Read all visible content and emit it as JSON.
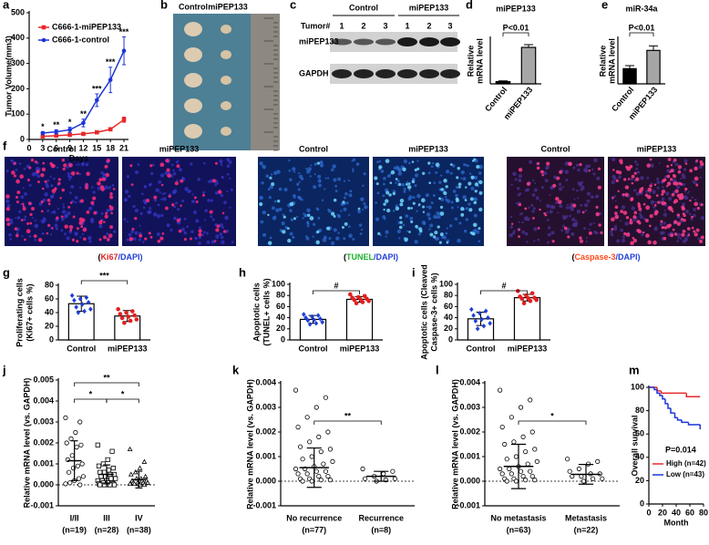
{
  "chart_data": [
    {
      "letter": "a",
      "type": "line",
      "ylabel": "Tumor Volume(mm3)",
      "xlabel": "Days",
      "x": [
        3,
        6,
        9,
        12,
        15,
        18,
        21
      ],
      "xlim": [
        0,
        22
      ],
      "xticks": [
        0,
        3,
        6,
        9,
        12,
        15,
        18,
        21
      ],
      "ylim": [
        0,
        500
      ],
      "yticks": [
        0,
        100,
        200,
        300,
        400,
        500
      ],
      "series": [
        {
          "name": "C666-1-miPEP133",
          "color": "#e8282b",
          "marker": "square",
          "values": [
            12,
            15,
            18,
            22,
            28,
            40,
            78
          ],
          "errors": [
            4,
            4,
            5,
            5,
            6,
            6,
            10
          ]
        },
        {
          "name": "C666-1-control",
          "color": "#1d35d6",
          "marker": "circle",
          "values": [
            25,
            30,
            38,
            65,
            155,
            235,
            350
          ],
          "errors": [
            6,
            8,
            10,
            15,
            25,
            50,
            55
          ]
        }
      ],
      "annotations": [
        "*",
        "**",
        "*",
        "**",
        "***",
        "***",
        "***"
      ]
    },
    {
      "letter": "d",
      "type": "bar",
      "title": "miPEP133",
      "ylabel": [
        "Relative",
        "mRNA level"
      ],
      "categories": [
        "Control",
        "miPEP133"
      ],
      "values": [
        1,
        16
      ],
      "errors": [
        0.3,
        1.2
      ],
      "colors": [
        "#000000",
        "#a6a6a6"
      ],
      "ylim": [
        0,
        20
      ],
      "significance": "P<0.01"
    },
    {
      "letter": "e",
      "type": "bar",
      "title": "miR-34a",
      "ylabel": [
        "Relative",
        "mRNA level"
      ],
      "categories": [
        "Control",
        "miPEP133"
      ],
      "values": [
        1,
        2.2
      ],
      "errors": [
        0.2,
        0.3
      ],
      "colors": [
        "#000000",
        "#a6a6a6"
      ],
      "ylim": [
        0,
        3
      ],
      "significance": "P<0.01"
    },
    {
      "letter": "g",
      "type": "bar",
      "ylabel": [
        "Proliferating cells",
        "(Ki67+ cells %)"
      ],
      "categories": [
        "Control",
        "miPEP133"
      ],
      "values": [
        53,
        35
      ],
      "errors": [
        11,
        8
      ],
      "colors": [
        "#ffffff",
        "#ffffff"
      ],
      "point_colors": [
        "#1f3fd8",
        "#e02020"
      ],
      "points": [
        [
          65,
          62,
          60,
          58,
          55,
          52,
          48,
          45,
          42,
          40
        ],
        [
          45,
          42,
          40,
          38,
          36,
          34,
          32,
          30,
          28,
          25
        ]
      ],
      "ylim": [
        0,
        80
      ],
      "yticks": [
        0,
        20,
        40,
        60,
        80
      ],
      "significance": "***"
    },
    {
      "letter": "h",
      "type": "bar",
      "ylabel": [
        "Apoptotic cells",
        "(TUNEL+ cells %)"
      ],
      "categories": [
        "Control",
        "miPEP133"
      ],
      "values": [
        37,
        73
      ],
      "errors": [
        7,
        5
      ],
      "colors": [
        "#ffffff",
        "#ffffff"
      ],
      "point_colors": [
        "#1f3fd8",
        "#e02020"
      ],
      "points": [
        [
          46,
          44,
          42,
          40,
          38,
          36,
          35,
          32,
          30,
          28
        ],
        [
          82,
          79,
          77,
          76,
          74,
          73,
          72,
          70,
          68,
          66
        ]
      ],
      "ylim": [
        0,
        100
      ],
      "yticks": [
        0,
        20,
        40,
        60,
        80,
        100
      ],
      "significance": "#"
    },
    {
      "letter": "i",
      "type": "bar",
      "ylabel": [
        "Apoptotic cells (Cleaved",
        "Caspase-3+ cells %)"
      ],
      "categories": [
        "Control",
        "miPEP133"
      ],
      "values": [
        38,
        76
      ],
      "errors": [
        12,
        6
      ],
      "colors": [
        "#ffffff",
        "#ffffff"
      ],
      "point_colors": [
        "#1f3fd8",
        "#e02020"
      ],
      "points": [
        [
          55,
          52,
          48,
          44,
          40,
          37,
          34,
          30,
          25,
          20
        ],
        [
          88,
          84,
          80,
          78,
          76,
          75,
          74,
          72,
          70,
          66
        ]
      ],
      "ylim": [
        0,
        100
      ],
      "yticks": [
        0,
        20,
        40,
        60,
        80,
        100
      ],
      "significance": "#"
    },
    {
      "letter": "j",
      "type": "dot",
      "ylabel": "Relative mRNA level (vs. GAPDH)",
      "categories": [
        "I/II",
        "III",
        "IV"
      ],
      "sublabels": [
        "(n=19)",
        "(n=28)",
        "(n=38)"
      ],
      "markers": [
        "circle",
        "square",
        "triangle"
      ],
      "points": [
        [
          0.0032,
          0.003,
          0.0025,
          0.0022,
          0.002,
          0.0019,
          0.0018,
          0.0014,
          0.0012,
          0.001,
          0.0009,
          0.0008,
          0.0006,
          0.0004,
          0.0003,
          0.0002,
          0.0001,
          5e-05,
          0
        ],
        [
          0.0019,
          0.0016,
          0.0012,
          0.001,
          0.0009,
          0.0008,
          0.0007,
          0.0006,
          0.0006,
          0.0005,
          0.0005,
          0.0004,
          0.0004,
          0.0003,
          0.0003,
          0.0002,
          0.0002,
          0.0002,
          0.0001,
          0.0001,
          0.0001,
          5e-05,
          5e-05,
          0,
          0,
          0,
          0,
          0
        ],
        [
          0.0017,
          0.0011,
          0.0008,
          0.0006,
          0.0005,
          0.0004,
          0.0003,
          0.0003,
          0.0002,
          0.0002,
          0.0002,
          0.0001,
          0.0001,
          0.0001,
          0.0001,
          5e-05,
          5e-05,
          5e-05,
          0,
          0
        ]
      ],
      "means": [
        0.00115,
        0.0005,
        0.00025
      ],
      "sds": [
        0.00095,
        0.00045,
        0.0004
      ],
      "ylim": [
        -0.001,
        0.005
      ],
      "yticks": [
        -0.001,
        {
          "value": 0,
          "label": "0.000"
        },
        0.001,
        0.002,
        0.003,
        0.004,
        0.005
      ],
      "zero_line": true,
      "significance": [
        "*",
        "*",
        "**"
      ]
    },
    {
      "letter": "k",
      "type": "dot",
      "ylabel": "Relative mRNA level (vs. GAPDH)",
      "categories": [
        "No recurrence",
        "Recurrence"
      ],
      "sublabels": [
        "(n=77)",
        "(n=8)"
      ],
      "markers": [
        "circle",
        "circle"
      ],
      "points": [
        [
          0.0037,
          0.0034,
          0.003,
          0.0026,
          0.0022,
          0.002,
          0.0018,
          0.0016,
          0.0014,
          0.0013,
          0.0012,
          0.001,
          0.0009,
          0.0008,
          0.0007,
          0.0006,
          0.0005,
          0.0005,
          0.0004,
          0.0004,
          0.0003,
          0.0003,
          0.0002,
          0.0002,
          0.0001,
          0.0001,
          5e-05,
          5e-05,
          0,
          0
        ],
        [
          0.0005,
          0.0004,
          0.0003,
          0.0002,
          0.0001,
          0.0001,
          5e-05,
          0
        ]
      ],
      "means": [
        0.00055,
        0.0002
      ],
      "sds": [
        0.0008,
        0.0002
      ],
      "ylim": [
        -0.001,
        0.004
      ],
      "yticks": [
        -0.001,
        {
          "value": 0,
          "label": "0.000"
        },
        0.001,
        0.002,
        0.003,
        0.004
      ],
      "zero_line": true,
      "significance": [
        "**"
      ]
    },
    {
      "letter": "l",
      "type": "dot",
      "ylabel": "Relative mRNA level (vs. GAPDH)",
      "categories": [
        "No metastasis",
        "Metastasis"
      ],
      "sublabels": [
        "(n=63)",
        "(n=22)"
      ],
      "markers": [
        "circle",
        "circle"
      ],
      "points": [
        [
          0.0037,
          0.0033,
          0.003,
          0.0026,
          0.0022,
          0.002,
          0.0018,
          0.0016,
          0.0015,
          0.0013,
          0.0012,
          0.001,
          0.0009,
          0.0008,
          0.0007,
          0.0006,
          0.0005,
          0.0005,
          0.0004,
          0.0004,
          0.0003,
          0.0003,
          0.0002,
          0.0002,
          0.0001,
          0.0001,
          5e-05,
          5e-05,
          0,
          0
        ],
        [
          0.0009,
          0.0008,
          0.0007,
          0.0005,
          0.0004,
          0.0003,
          0.0003,
          0.0002,
          0.0002,
          0.0001,
          0.0001,
          0
        ]
      ],
      "means": [
        0.0006,
        0.00028
      ],
      "sds": [
        0.0009,
        0.0004
      ],
      "ylim": [
        -0.001,
        0.004
      ],
      "yticks": [
        -0.001,
        {
          "value": 0,
          "label": "0.000"
        },
        0.001,
        0.002,
        0.003,
        0.004
      ],
      "zero_line": true,
      "significance": [
        "*"
      ]
    },
    {
      "letter": "m",
      "type": "line",
      "step": true,
      "ylabel": "Overall survival",
      "xlabel": "Month",
      "xlim": [
        0,
        80
      ],
      "xticks": [
        0,
        20,
        40,
        60,
        80
      ],
      "ylim": [
        0,
        100
      ],
      "yticks": [
        0,
        20,
        40,
        60,
        80,
        100
      ],
      "series": [
        {
          "name": "High (n=42)",
          "color": "#e8282b",
          "x": [
            0,
            12,
            18,
            22,
            55,
            75
          ],
          "values": [
            100,
            97,
            95,
            95,
            92,
            92
          ]
        },
        {
          "name": "Low (n=43)",
          "color": "#1d35d6",
          "x": [
            0,
            8,
            12,
            16,
            20,
            24,
            28,
            32,
            38,
            42,
            48,
            58,
            68,
            75
          ],
          "values": [
            100,
            98,
            95,
            93,
            90,
            86,
            82,
            78,
            74,
            72,
            70,
            68,
            68,
            64
          ]
        }
      ],
      "annotation": "P=0.014"
    }
  ],
  "photo": {
    "letter": "b",
    "labels": [
      "Control",
      "miPEP133"
    ]
  },
  "blot": {
    "letter": "c",
    "groups": [
      "Control",
      "miPEP133"
    ],
    "tumor_label": "Tumor#",
    "lanes": [
      "1",
      "2",
      "3",
      "1",
      "2",
      "3"
    ],
    "rows": [
      "miPEP133",
      "GAPDH"
    ]
  },
  "micrographs": {
    "letter": "f",
    "groups": [
      {
        "labels": [
          "Control",
          "miPEP133"
        ],
        "caption": [
          "(",
          "Ki67",
          "/DAPI)"
        ]
      },
      {
        "labels": [
          "Control",
          "miPEP133"
        ],
        "caption": [
          "(",
          "TUNEL",
          "/DAPI)"
        ]
      },
      {
        "labels": [
          "Control",
          "miPEP133"
        ],
        "caption": [
          "(",
          "Caspase-3",
          "/DAPI)"
        ]
      }
    ]
  }
}
